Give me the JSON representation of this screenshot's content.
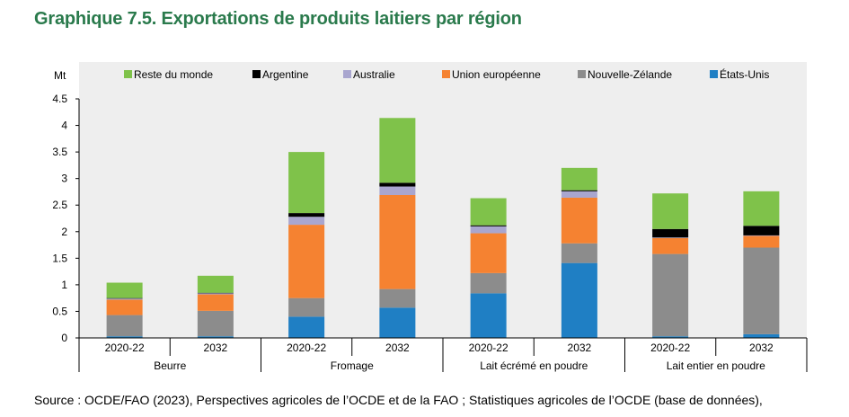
{
  "title": "Graphique 7.5. Exportations de produits laitiers par région",
  "source": {
    "label": "Source :",
    "text": "OCDE/FAO (2023), Perspectives agricoles de l’OCDE et de la FAO ; Statistiques agricoles de l’OCDE (base de données),"
  },
  "chart_data": {
    "type": "bar",
    "stacked": true,
    "unit_label": "Mt",
    "ylim": [
      0,
      4.5
    ],
    "yticks": [
      "0",
      "0.5",
      "1",
      "1.5",
      "2",
      "2.5",
      "3",
      "3.5",
      "4",
      "4.5"
    ],
    "grid": false,
    "legend_position": "top",
    "groups": [
      {
        "name": "Beurre",
        "categories": [
          "2020-22",
          "2032"
        ]
      },
      {
        "name": "Fromage",
        "categories": [
          "2020-22",
          "2032"
        ]
      },
      {
        "name": "Lait écrémé en poudre",
        "categories": [
          "2020-22",
          "2032"
        ]
      },
      {
        "name": "Lait entier en poudre",
        "categories": [
          "2020-22",
          "2032"
        ]
      }
    ],
    "series": [
      {
        "name": "États-Unis",
        "color": "#1f7fc4",
        "values": [
          0.03,
          0.03,
          0.4,
          0.57,
          0.84,
          1.41,
          0.03,
          0.07
        ]
      },
      {
        "name": "Nouvelle-Zélande",
        "color": "#8c8c8c",
        "values": [
          0.4,
          0.48,
          0.35,
          0.35,
          0.38,
          0.37,
          1.55,
          1.63
        ]
      },
      {
        "name": "Union européenne",
        "color": "#f58231",
        "values": [
          0.29,
          0.31,
          1.38,
          1.77,
          0.75,
          0.86,
          0.3,
          0.22
        ]
      },
      {
        "name": "Australie",
        "color": "#a9a6cf",
        "values": [
          0.02,
          0.02,
          0.15,
          0.16,
          0.13,
          0.12,
          0.01,
          0.01
        ]
      },
      {
        "name": "Argentine",
        "color": "#000000",
        "values": [
          0.01,
          0.01,
          0.07,
          0.07,
          0.02,
          0.02,
          0.16,
          0.18
        ]
      },
      {
        "name": "Reste du monde",
        "color": "#7fc24a",
        "values": [
          0.29,
          0.32,
          1.15,
          1.22,
          0.51,
          0.42,
          0.67,
          0.65
        ]
      }
    ],
    "legend_order": [
      "Reste du monde",
      "Argentine",
      "Australie",
      "Union européenne",
      "Nouvelle-Zélande",
      "États-Unis"
    ]
  }
}
